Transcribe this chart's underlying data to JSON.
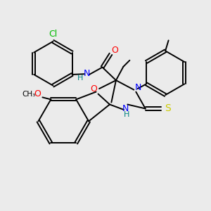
{
  "background_color": "#ebebeb",
  "atom_colors": {
    "C": "#000000",
    "N": "#0000ff",
    "O": "#ff0000",
    "S": "#cccc00",
    "Cl": "#00bb00",
    "H": "#008080"
  },
  "figsize": [
    3.0,
    3.0
  ],
  "dpi": 100
}
